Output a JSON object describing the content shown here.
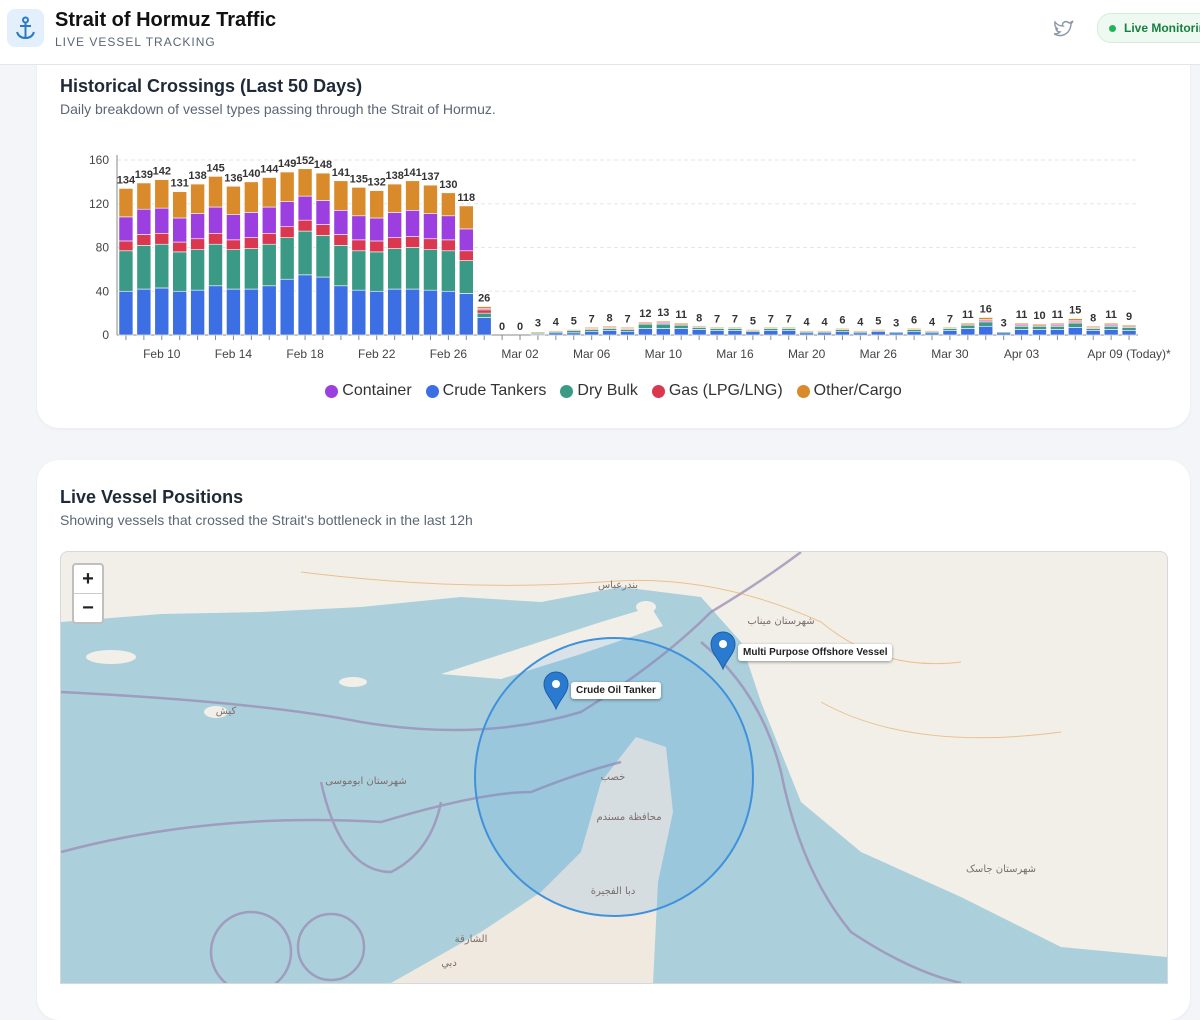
{
  "header": {
    "title": "Strait of Hormuz Traffic",
    "subtitle": "LIVE VESSEL TRACKING",
    "status": "Live Monitorin"
  },
  "history": {
    "title": "Historical Crossings (Last 50 Days)",
    "subtitle": "Daily breakdown of vessel types passing through the Strait of Hormuz."
  },
  "chart_data": {
    "type": "stacked_bar",
    "categories": [
      null,
      null,
      "Feb 10",
      null,
      null,
      null,
      "Feb 14",
      null,
      null,
      null,
      "Feb 18",
      null,
      null,
      null,
      "Feb 22",
      null,
      null,
      null,
      "Feb 26",
      null,
      null,
      null,
      "Mar 02",
      null,
      null,
      null,
      "Mar 06",
      null,
      null,
      null,
      "Mar 10",
      null,
      null,
      null,
      "Mar 16",
      null,
      null,
      null,
      "Mar 20",
      null,
      null,
      null,
      "Mar 26",
      null,
      null,
      null,
      "Mar 30",
      null,
      null,
      null,
      "Apr 03",
      null,
      null,
      null,
      null,
      null,
      "Apr 09 (Today)*"
    ],
    "series": [
      {
        "name": "Crude Tankers",
        "color": "#3b6fe3",
        "values": [
          40,
          42,
          43,
          40,
          41,
          45,
          42,
          42,
          45,
          51,
          55,
          53,
          45,
          41,
          40,
          42,
          42,
          41,
          40,
          38,
          16,
          0,
          0,
          1,
          2,
          2,
          3,
          4,
          3,
          6,
          6,
          6,
          5,
          4,
          4,
          3,
          4,
          4,
          2,
          2,
          3,
          2,
          3,
          2,
          3,
          2,
          4,
          6,
          8,
          2,
          5,
          5,
          5,
          7,
          4,
          5,
          4
        ]
      },
      {
        "name": "Dry Bulk",
        "color": "#3a9a86",
        "values": [
          37,
          40,
          40,
          36,
          37,
          38,
          36,
          37,
          38,
          38,
          40,
          38,
          37,
          36,
          36,
          37,
          38,
          37,
          37,
          30,
          4,
          0,
          0,
          1,
          1,
          2,
          2,
          2,
          2,
          4,
          4,
          3,
          2,
          2,
          2,
          1,
          2,
          2,
          1,
          1,
          2,
          1,
          1,
          1,
          2,
          1,
          2,
          3,
          4,
          1,
          3,
          3,
          3,
          4,
          2,
          3,
          3
        ]
      },
      {
        "name": "Gas (LPG/LNG)",
        "color": "#d9384f",
        "values": [
          9,
          10,
          10,
          9,
          10,
          10,
          9,
          10,
          10,
          10,
          10,
          10,
          10,
          10,
          10,
          10,
          10,
          10,
          10,
          9,
          3,
          0,
          0,
          0,
          0,
          0,
          1,
          1,
          1,
          1,
          1,
          1,
          0,
          0,
          0,
          0,
          0,
          0,
          0,
          0,
          0,
          0,
          0,
          0,
          0,
          0,
          0,
          1,
          1,
          0,
          1,
          1,
          1,
          1,
          1,
          1,
          1
        ]
      },
      {
        "name": "Container",
        "color": "#9b3fe0",
        "values": [
          22,
          23,
          23,
          22,
          23,
          24,
          23,
          23,
          24,
          23,
          22,
          22,
          22,
          22,
          21,
          23,
          24,
          23,
          22,
          20,
          1,
          0,
          0,
          0,
          0,
          0,
          0,
          0,
          0,
          0,
          1,
          0,
          0,
          0,
          0,
          0,
          0,
          0,
          0,
          0,
          0,
          0,
          0,
          0,
          0,
          0,
          0,
          0,
          1,
          0,
          1,
          0,
          1,
          1,
          0,
          1,
          0
        ]
      },
      {
        "name": "Other/Cargo",
        "color": "#d98a2b",
        "values": [
          26,
          24,
          26,
          24,
          27,
          28,
          26,
          28,
          27,
          27,
          25,
          25,
          27,
          26,
          25,
          26,
          27,
          26,
          21,
          21,
          2,
          0,
          0,
          1,
          1,
          1,
          1,
          1,
          1,
          1,
          1,
          1,
          1,
          1,
          1,
          1,
          1,
          1,
          1,
          1,
          1,
          1,
          1,
          0,
          1,
          1,
          1,
          1,
          2,
          0,
          1,
          1,
          1,
          2,
          1,
          1,
          1
        ]
      }
    ],
    "totals": [
      134,
      139,
      142,
      131,
      138,
      145,
      136,
      140,
      144,
      149,
      152,
      148,
      141,
      135,
      132,
      138,
      141,
      137,
      130,
      118,
      26,
      0,
      0,
      3,
      4,
      5,
      7,
      8,
      7,
      12,
      13,
      11,
      8,
      7,
      7,
      5,
      7,
      7,
      4,
      4,
      6,
      4,
      5,
      3,
      6,
      4,
      7,
      11,
      16,
      3,
      11,
      10,
      11,
      15,
      8,
      11,
      9
    ],
    "ylim": [
      0,
      160
    ],
    "yticks": [
      0,
      40,
      80,
      120,
      160
    ],
    "grid": true,
    "legend": "bottom"
  },
  "positions": {
    "title": "Live Vessel Positions",
    "subtitle": "Showing vessels that crossed the Strait's bottleneck in the last 12h"
  },
  "map": {
    "zoom_in": "+",
    "zoom_out": "−",
    "markers": [
      {
        "label": "Crude Oil Tanker"
      },
      {
        "label": "Multi Purpose Offshore Vessel"
      }
    ],
    "places": [
      "بندرعباس",
      "كيش",
      "شهرستان ابوموسی",
      "خصب",
      "محافظة مسندم",
      "دبا الفجيرة",
      "الشارقة",
      "دبي",
      "شهرستان جاسک",
      "شهرستان میناب"
    ]
  }
}
